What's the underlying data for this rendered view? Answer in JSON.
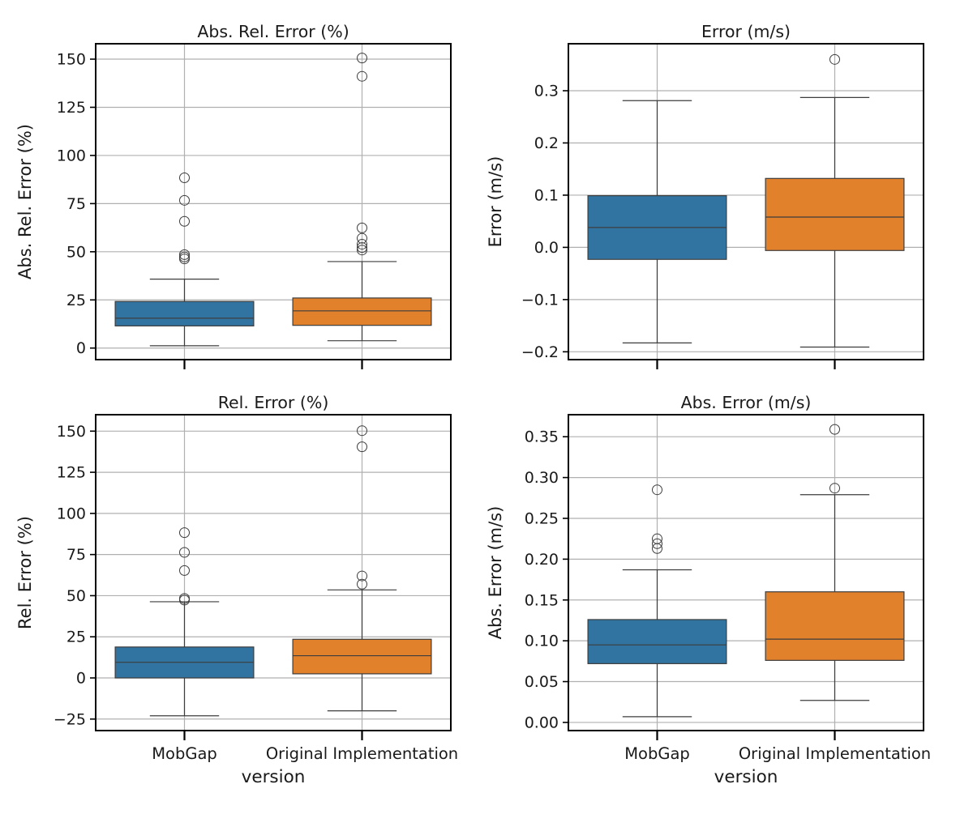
{
  "figure": {
    "shared_xlabel": "version",
    "categories": [
      "MobGap",
      "Original Implementation"
    ],
    "colors": {
      "MobGap": "#3274a1",
      "Original Implementation": "#e1812c",
      "grid": "#b0b0b0",
      "box_edge": "#3d3d3d",
      "flier_edge": "#3d3d3d"
    }
  },
  "chart_data": [
    {
      "type": "box",
      "title": "Abs. Rel. Error (%)",
      "ylabel": "Abs. Rel. Error (%)",
      "xlabel": "",
      "ylim": [
        -6,
        158
      ],
      "yticks": [
        0,
        25,
        50,
        75,
        100,
        125,
        150
      ],
      "ytick_labels": [
        "0",
        "25",
        "50",
        "75",
        "100",
        "125",
        "150"
      ],
      "grid": true,
      "categories": [
        "MobGap",
        "Original Implementation"
      ],
      "show_xtick_labels": false,
      "boxes": [
        {
          "name": "MobGap",
          "whislo": 1.2,
          "q1": 11.5,
          "med": 15.5,
          "q3": 24.2,
          "whishi": 35.8,
          "fliers": [
            46.3,
            47.3,
            48.5,
            65.8,
            76.7,
            88.4
          ]
        },
        {
          "name": "Original Implementation",
          "whislo": 3.8,
          "q1": 11.8,
          "med": 19.3,
          "q3": 26.0,
          "whishi": 44.9,
          "fliers": [
            50.9,
            52.2,
            53.9,
            57.0,
            62.4,
            141.1,
            150.6
          ]
        }
      ]
    },
    {
      "type": "box",
      "title": "Error (m/s)",
      "ylabel": "Error (m/s)",
      "xlabel": "",
      "ylim": [
        -0.215,
        0.39
      ],
      "yticks": [
        -0.2,
        -0.1,
        0.0,
        0.1,
        0.2,
        0.3
      ],
      "ytick_labels": [
        "−0.2",
        "−0.1",
        "0.0",
        "0.1",
        "0.2",
        "0.3"
      ],
      "grid": true,
      "categories": [
        "MobGap",
        "Original Implementation"
      ],
      "show_xtick_labels": false,
      "boxes": [
        {
          "name": "MobGap",
          "whislo": -0.183,
          "q1": -0.023,
          "med": 0.038,
          "q3": 0.099,
          "whishi": 0.281,
          "fliers": []
        },
        {
          "name": "Original Implementation",
          "whislo": -0.191,
          "q1": -0.006,
          "med": 0.058,
          "q3": 0.132,
          "whishi": 0.287,
          "fliers": [
            0.36
          ]
        }
      ]
    },
    {
      "type": "box",
      "title": "Rel. Error (%)",
      "ylabel": "Rel. Error (%)",
      "xlabel": "version",
      "ylim": [
        -32,
        160
      ],
      "yticks": [
        -25,
        0,
        25,
        50,
        75,
        100,
        125,
        150
      ],
      "ytick_labels": [
        "−25",
        "0",
        "25",
        "50",
        "75",
        "100",
        "125",
        "150"
      ],
      "grid": true,
      "categories": [
        "MobGap",
        "Original Implementation"
      ],
      "show_xtick_labels": true,
      "boxes": [
        {
          "name": "MobGap",
          "whislo": -23.0,
          "q1": 0.0,
          "med": 9.5,
          "q3": 18.8,
          "whishi": 46.3,
          "fliers": [
            47.3,
            48.3,
            65.3,
            76.3,
            88.3
          ]
        },
        {
          "name": "Original Implementation",
          "whislo": -20.0,
          "q1": 2.5,
          "med": 13.5,
          "q3": 23.5,
          "whishi": 53.5,
          "fliers": [
            57.0,
            62.0,
            140.5,
            150.3
          ]
        }
      ]
    },
    {
      "type": "box",
      "title": "Abs. Error (m/s)",
      "ylabel": "Abs. Error (m/s)",
      "xlabel": "version",
      "ylim": [
        -0.01,
        0.377
      ],
      "yticks": [
        0.0,
        0.05,
        0.1,
        0.15,
        0.2,
        0.25,
        0.3,
        0.35
      ],
      "ytick_labels": [
        "0.00",
        "0.05",
        "0.10",
        "0.15",
        "0.20",
        "0.25",
        "0.30",
        "0.35"
      ],
      "grid": true,
      "categories": [
        "MobGap",
        "Original Implementation"
      ],
      "show_xtick_labels": true,
      "boxes": [
        {
          "name": "MobGap",
          "whislo": 0.007,
          "q1": 0.072,
          "med": 0.095,
          "q3": 0.126,
          "whishi": 0.187,
          "fliers": [
            0.213,
            0.219,
            0.225,
            0.285
          ]
        },
        {
          "name": "Original Implementation",
          "whislo": 0.027,
          "q1": 0.076,
          "med": 0.102,
          "q3": 0.16,
          "whishi": 0.279,
          "fliers": [
            0.287,
            0.359
          ]
        }
      ]
    }
  ]
}
